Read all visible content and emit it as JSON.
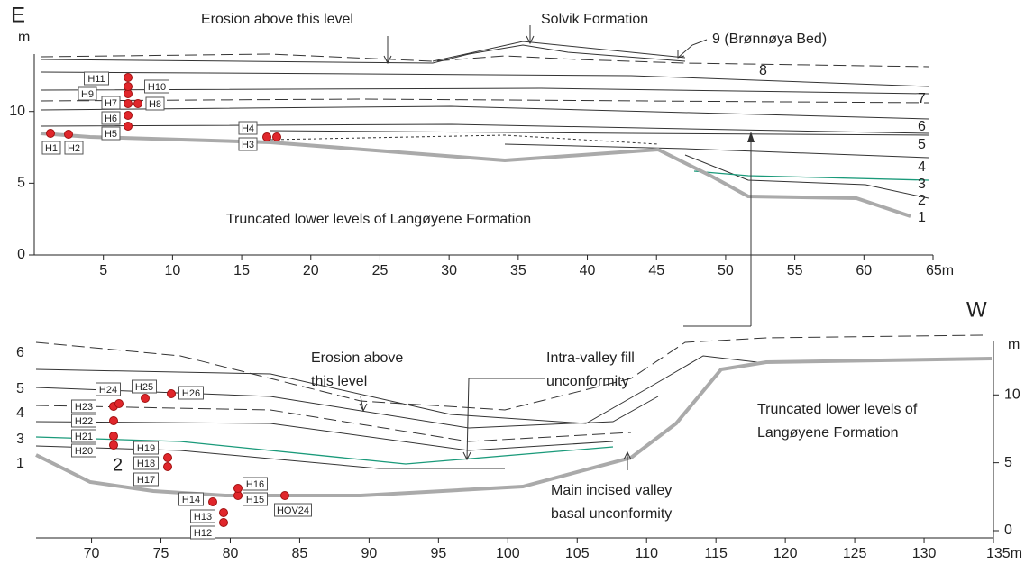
{
  "top_panel": {
    "side_label": "E",
    "y_unit": "m",
    "xlim": [
      0,
      65
    ],
    "ylim": [
      0,
      14
    ],
    "xticks": [
      5,
      10,
      15,
      20,
      25,
      30,
      35,
      40,
      45,
      50,
      55,
      60,
      {
        "value": 65,
        "label": "65m"
      }
    ],
    "yticks": [
      0,
      5,
      10
    ],
    "annotations": [
      [
        "Erosion above this level"
      ],
      [
        "Solvik Formation"
      ],
      [
        "9 (Brønnøya Bed)"
      ],
      [
        "Truncated lower levels of Langøyene Formation"
      ]
    ],
    "level_labels": [
      "8",
      "7",
      "6",
      "5",
      "4",
      "3",
      "2",
      "1"
    ],
    "samples": [
      "H1",
      "H2",
      "H3",
      "H4",
      "H5",
      "H6",
      "H7",
      "H8",
      "H9",
      "H10",
      "H11"
    ]
  },
  "bottom_panel": {
    "side_label": "W",
    "y_unit": "m",
    "xlim": [
      66,
      135
    ],
    "ylim": [
      0,
      14
    ],
    "xticks": [
      70,
      75,
      80,
      85,
      90,
      95,
      100,
      105,
      110,
      115,
      120,
      125,
      130,
      {
        "value": 135,
        "label": "135m"
      }
    ],
    "yticks": [
      0,
      5,
      10
    ],
    "annotations": [
      [
        "Erosion above",
        "this level"
      ],
      [
        "Intra-valley fill",
        "unconformity"
      ],
      [
        "Main incised valley",
        "basal unconformity"
      ],
      [
        "Truncated lower levels of",
        "Langøyene Formation"
      ]
    ],
    "level_labels": [
      "6",
      "5",
      "4",
      "3",
      "1",
      "2"
    ],
    "samples": [
      "H12",
      "H13",
      "H14",
      "H15",
      "H16",
      "H17",
      "H18",
      "H19",
      "H20",
      "H21",
      "H22",
      "H23",
      "H24",
      "H25",
      "H26",
      "HOV24"
    ]
  }
}
